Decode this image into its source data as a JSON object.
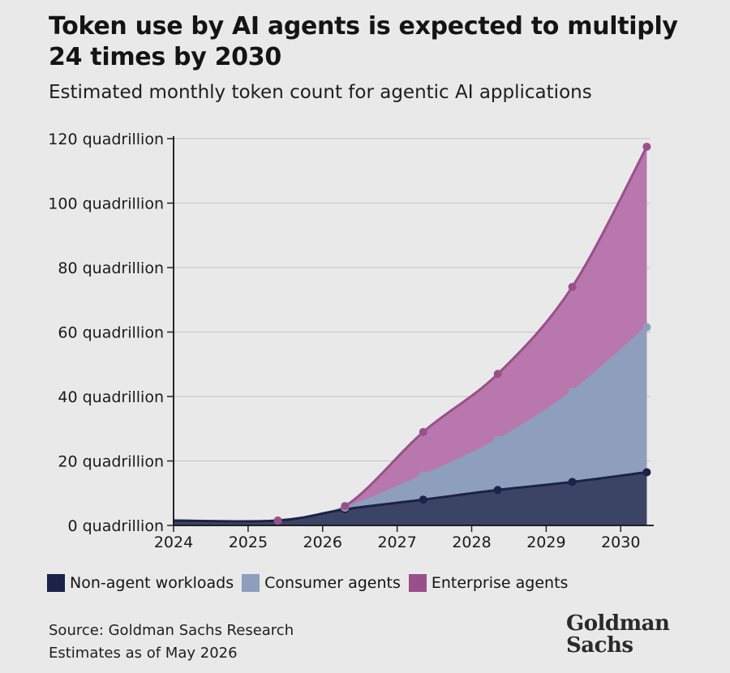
{
  "header": {
    "title": "Token use by AI agents is expected to multiply 24 times by 2030",
    "subtitle": "Estimated monthly token count for agentic AI applications"
  },
  "footer": {
    "source": "Source: Goldman Sachs Research",
    "estimates": "Estimates as of May 2026"
  },
  "logo": {
    "line1": "Goldman",
    "line2": "Sachs"
  },
  "chart_data": {
    "type": "area",
    "stacked": true,
    "x_ticks": [
      "2024",
      "2025",
      "2026",
      "2027",
      "2028",
      "2029",
      "2030"
    ],
    "y_ticks": [
      "0 quadrillion",
      "20 quadrillion",
      "40 quadrillion",
      "60 quadrillion",
      "80 quadrillion",
      "100 quadrillion",
      "120 quadrillion"
    ],
    "ylim": [
      0,
      120
    ],
    "xlim": [
      2024,
      2030.4
    ],
    "grid": true,
    "legend_position": "bottom",
    "x": [
      2024,
      2025.4,
      2026.3,
      2027.35,
      2028.35,
      2029.35,
      2030.35
    ],
    "series": [
      {
        "name": "Non-agent workloads",
        "color": "#3c4466",
        "marker": "#1c2248",
        "values": [
          1.5,
          1.5,
          5,
          8,
          11,
          13.5,
          16.5
        ]
      },
      {
        "name": "Consumer agents",
        "color": "#8d9fbc",
        "marker": "#8d9fbc",
        "values": [
          1.5,
          1.5,
          5.5,
          15.5,
          26.5,
          41.5,
          61.5
        ]
      },
      {
        "name": "Enterprise agents",
        "color": "#b877ad",
        "marker": "#9a4f8c",
        "values": [
          1.5,
          1.5,
          6,
          29,
          47,
          74,
          117.5
        ]
      }
    ]
  }
}
